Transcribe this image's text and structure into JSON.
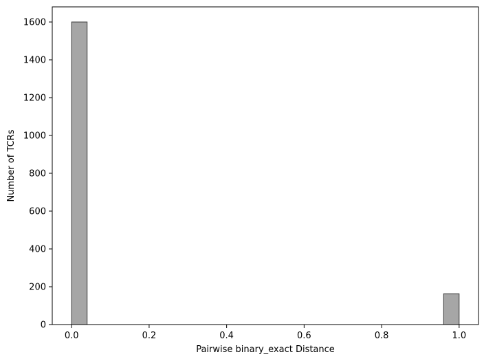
{
  "chart_data": {
    "type": "bar",
    "title": "",
    "xlabel": "Pairwise binary_exact Distance",
    "ylabel": "Number of TCRs",
    "xlim": [
      -0.05,
      1.05
    ],
    "ylim": [
      0,
      1680
    ],
    "xticks": [
      0.0,
      0.2,
      0.4,
      0.6,
      0.8,
      1.0
    ],
    "xtick_labels": [
      "0.0",
      "0.2",
      "0.4",
      "0.6",
      "0.8",
      "1.0"
    ],
    "yticks": [
      0,
      200,
      400,
      600,
      800,
      1000,
      1200,
      1400,
      1600
    ],
    "ytick_labels": [
      "0",
      "200",
      "400",
      "600",
      "800",
      "1000",
      "1200",
      "1400",
      "1600"
    ],
    "bin_width": 0.04,
    "bins": [
      {
        "x0": 0.0,
        "x1": 0.04,
        "value": 1600
      },
      {
        "x0": 0.96,
        "x1": 1.0,
        "value": 163
      }
    ],
    "bar_color": "#a6a6a6",
    "edge_color": "#3a3a3a",
    "grid": false,
    "legend": "none"
  }
}
